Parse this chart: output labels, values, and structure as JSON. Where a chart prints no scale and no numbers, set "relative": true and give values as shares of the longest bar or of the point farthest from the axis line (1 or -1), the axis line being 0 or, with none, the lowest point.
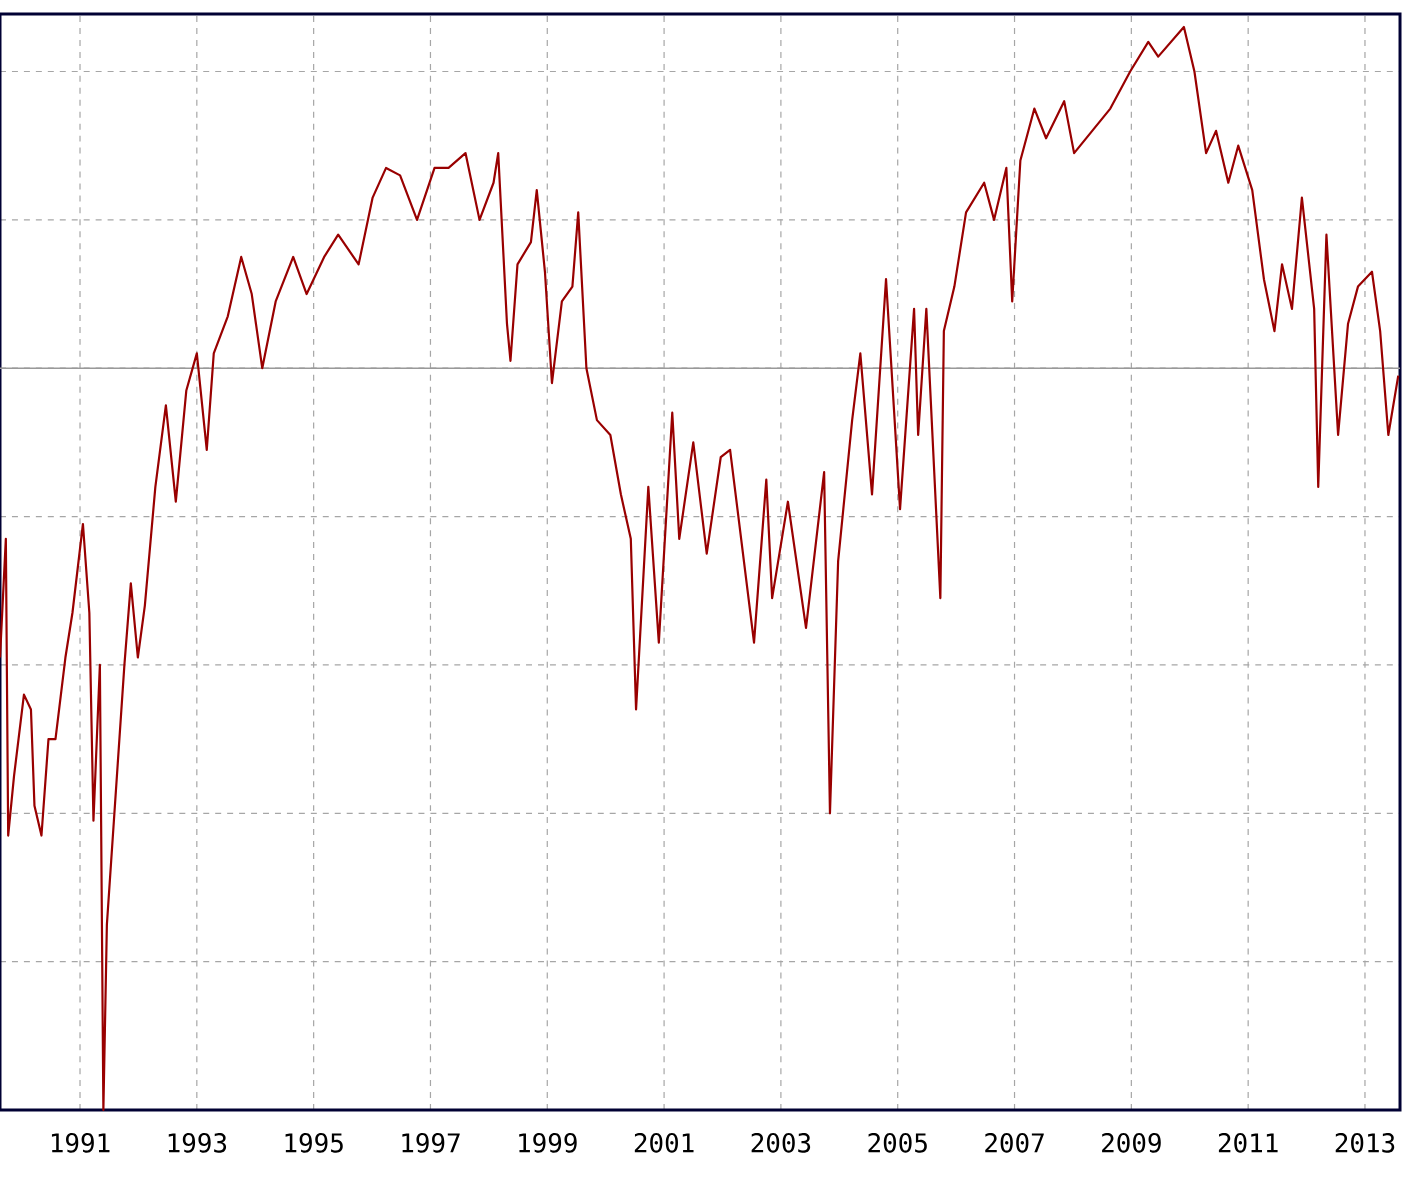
{
  "chart_data": {
    "type": "line",
    "relative": true,
    "grid": true,
    "marker": "none",
    "line_style": "solid",
    "xlim": [
      1989.63,
      2013.6
    ],
    "xticks": [
      1991,
      1993,
      1995,
      1997,
      1999,
      2001,
      2003,
      2005,
      2007,
      2009,
      2011,
      2013
    ],
    "series": [
      {
        "color": "#990000",
        "x": [
          1989.63,
          1989.73,
          1989.77,
          1989.87,
          1990.04,
          1990.16,
          1990.22,
          1990.34,
          1990.46,
          1990.58,
          1990.75,
          1990.87,
          1991.05,
          1991.16,
          1991.23,
          1991.34,
          1991.4,
          1991.46,
          1991.58,
          1991.76,
          1991.87,
          1991.99,
          1992.11,
          1992.29,
          1992.47,
          1992.64,
          1992.82,
          1993.0,
          1993.17,
          1993.29,
          1993.53,
          1993.76,
          1993.94,
          1994.12,
          1994.35,
          1994.65,
          1994.88,
          1995.18,
          1995.42,
          1995.77,
          1996.01,
          1996.24,
          1996.48,
          1996.77,
          1997.07,
          1997.31,
          1997.6,
          1997.84,
          1998.08,
          1998.16,
          1998.31,
          1998.37,
          1998.49,
          1998.72,
          1998.82,
          1998.96,
          1999.08,
          1999.25,
          1999.43,
          1999.53,
          1999.67,
          1999.85,
          2000.08,
          2000.26,
          2000.43,
          2000.52,
          2000.73,
          2000.91,
          2001.14,
          2001.26,
          2001.5,
          2001.73,
          2001.97,
          2002.13,
          2002.54,
          2002.75,
          2002.85,
          2003.12,
          2003.43,
          2003.74,
          2003.84,
          2003.98,
          2004.22,
          2004.36,
          2004.56,
          2004.8,
          2005.04,
          2005.28,
          2005.35,
          2005.49,
          2005.73,
          2005.79,
          2005.97,
          2006.17,
          2006.48,
          2006.65,
          2006.86,
          2006.96,
          2007.1,
          2007.34,
          2007.54,
          2007.85,
          2008.02,
          2008.33,
          2008.64,
          2008.98,
          2009.29,
          2009.46,
          2009.9,
          2010.08,
          2010.28,
          2010.45,
          2010.66,
          2010.83,
          2011.07,
          2011.27,
          2011.45,
          2011.58,
          2011.75,
          2011.92,
          2012.13,
          2012.2,
          2012.34,
          2012.54,
          2012.71,
          2012.88,
          2013.12,
          2013.26,
          2013.4,
          2013.57
        ],
        "values": [
          -0.39,
          -0.23,
          -0.63,
          -0.55,
          -0.44,
          -0.46,
          -0.59,
          -0.63,
          -0.5,
          -0.5,
          -0.39,
          -0.33,
          -0.21,
          -0.33,
          -0.61,
          -0.4,
          -1.0,
          -0.75,
          -0.61,
          -0.4,
          -0.29,
          -0.39,
          -0.32,
          -0.16,
          -0.05,
          -0.18,
          -0.03,
          0.02,
          -0.11,
          0.02,
          0.07,
          0.15,
          0.1,
          0.0,
          0.09,
          0.15,
          0.1,
          0.15,
          0.18,
          0.14,
          0.23,
          0.27,
          0.26,
          0.2,
          0.27,
          0.27,
          0.29,
          0.2,
          0.25,
          0.29,
          0.06,
          0.01,
          0.14,
          0.17,
          0.24,
          0.13,
          -0.02,
          0.09,
          0.11,
          0.21,
          0.0,
          -0.07,
          -0.09,
          -0.17,
          -0.23,
          -0.46,
          -0.16,
          -0.37,
          -0.06,
          -0.23,
          -0.1,
          -0.25,
          -0.12,
          -0.11,
          -0.37,
          -0.15,
          -0.31,
          -0.18,
          -0.35,
          -0.14,
          -0.6,
          -0.26,
          -0.07,
          0.02,
          -0.17,
          0.12,
          -0.19,
          0.08,
          -0.09,
          0.08,
          -0.31,
          0.05,
          0.11,
          0.21,
          0.25,
          0.2,
          0.27,
          0.09,
          0.28,
          0.35,
          0.31,
          0.36,
          0.29,
          0.32,
          0.35,
          0.4,
          0.44,
          0.42,
          0.46,
          0.4,
          0.29,
          0.32,
          0.25,
          0.3,
          0.24,
          0.12,
          0.05,
          0.14,
          0.08,
          0.23,
          0.08,
          -0.16,
          0.18,
          -0.09,
          0.06,
          0.11,
          0.13,
          0.05,
          -0.09,
          -0.01
        ]
      }
    ]
  }
}
